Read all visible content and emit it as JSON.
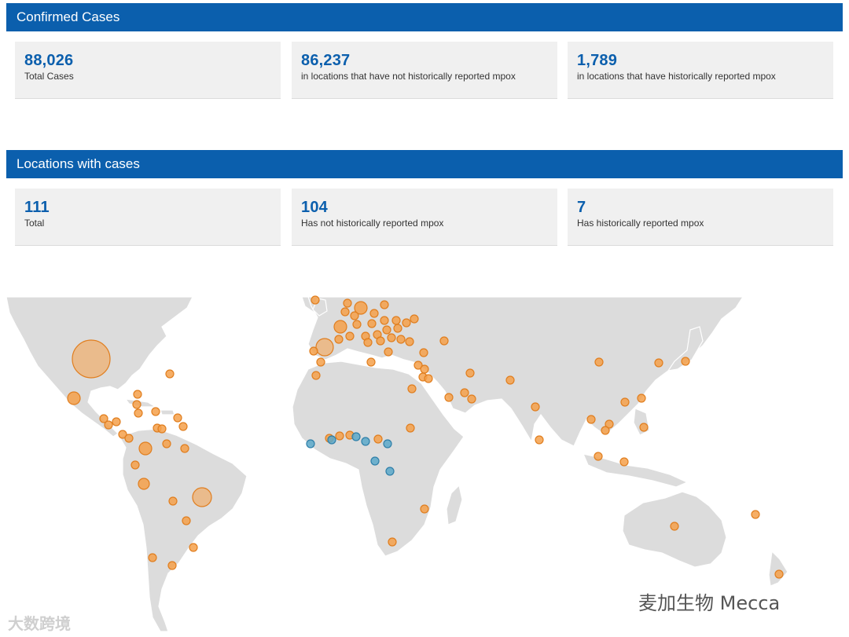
{
  "confirmed": {
    "title": "Confirmed Cases",
    "cards": [
      {
        "value": "88,026",
        "label": "Total Cases"
      },
      {
        "value": "86,237",
        "label": "in locations that have not historically reported mpox"
      },
      {
        "value": "1,789",
        "label": "in locations that have historically reported mpox"
      }
    ]
  },
  "locations": {
    "title": "Locations with cases",
    "cards": [
      {
        "value": "111",
        "label": "Total"
      },
      {
        "value": "104",
        "label": "Has not historically reported mpox"
      },
      {
        "value": "7",
        "label": "Has historically reported mpox"
      }
    ]
  },
  "map": {
    "colors": {
      "land": "#dcdcdc",
      "border": "#ffffff",
      "not_historical": "#f5a04a",
      "historical": "#5ba8c9"
    }
  },
  "watermarks": {
    "bottom_left": "大数跨境",
    "bottom_right": "麦加生物 Mecca"
  }
}
